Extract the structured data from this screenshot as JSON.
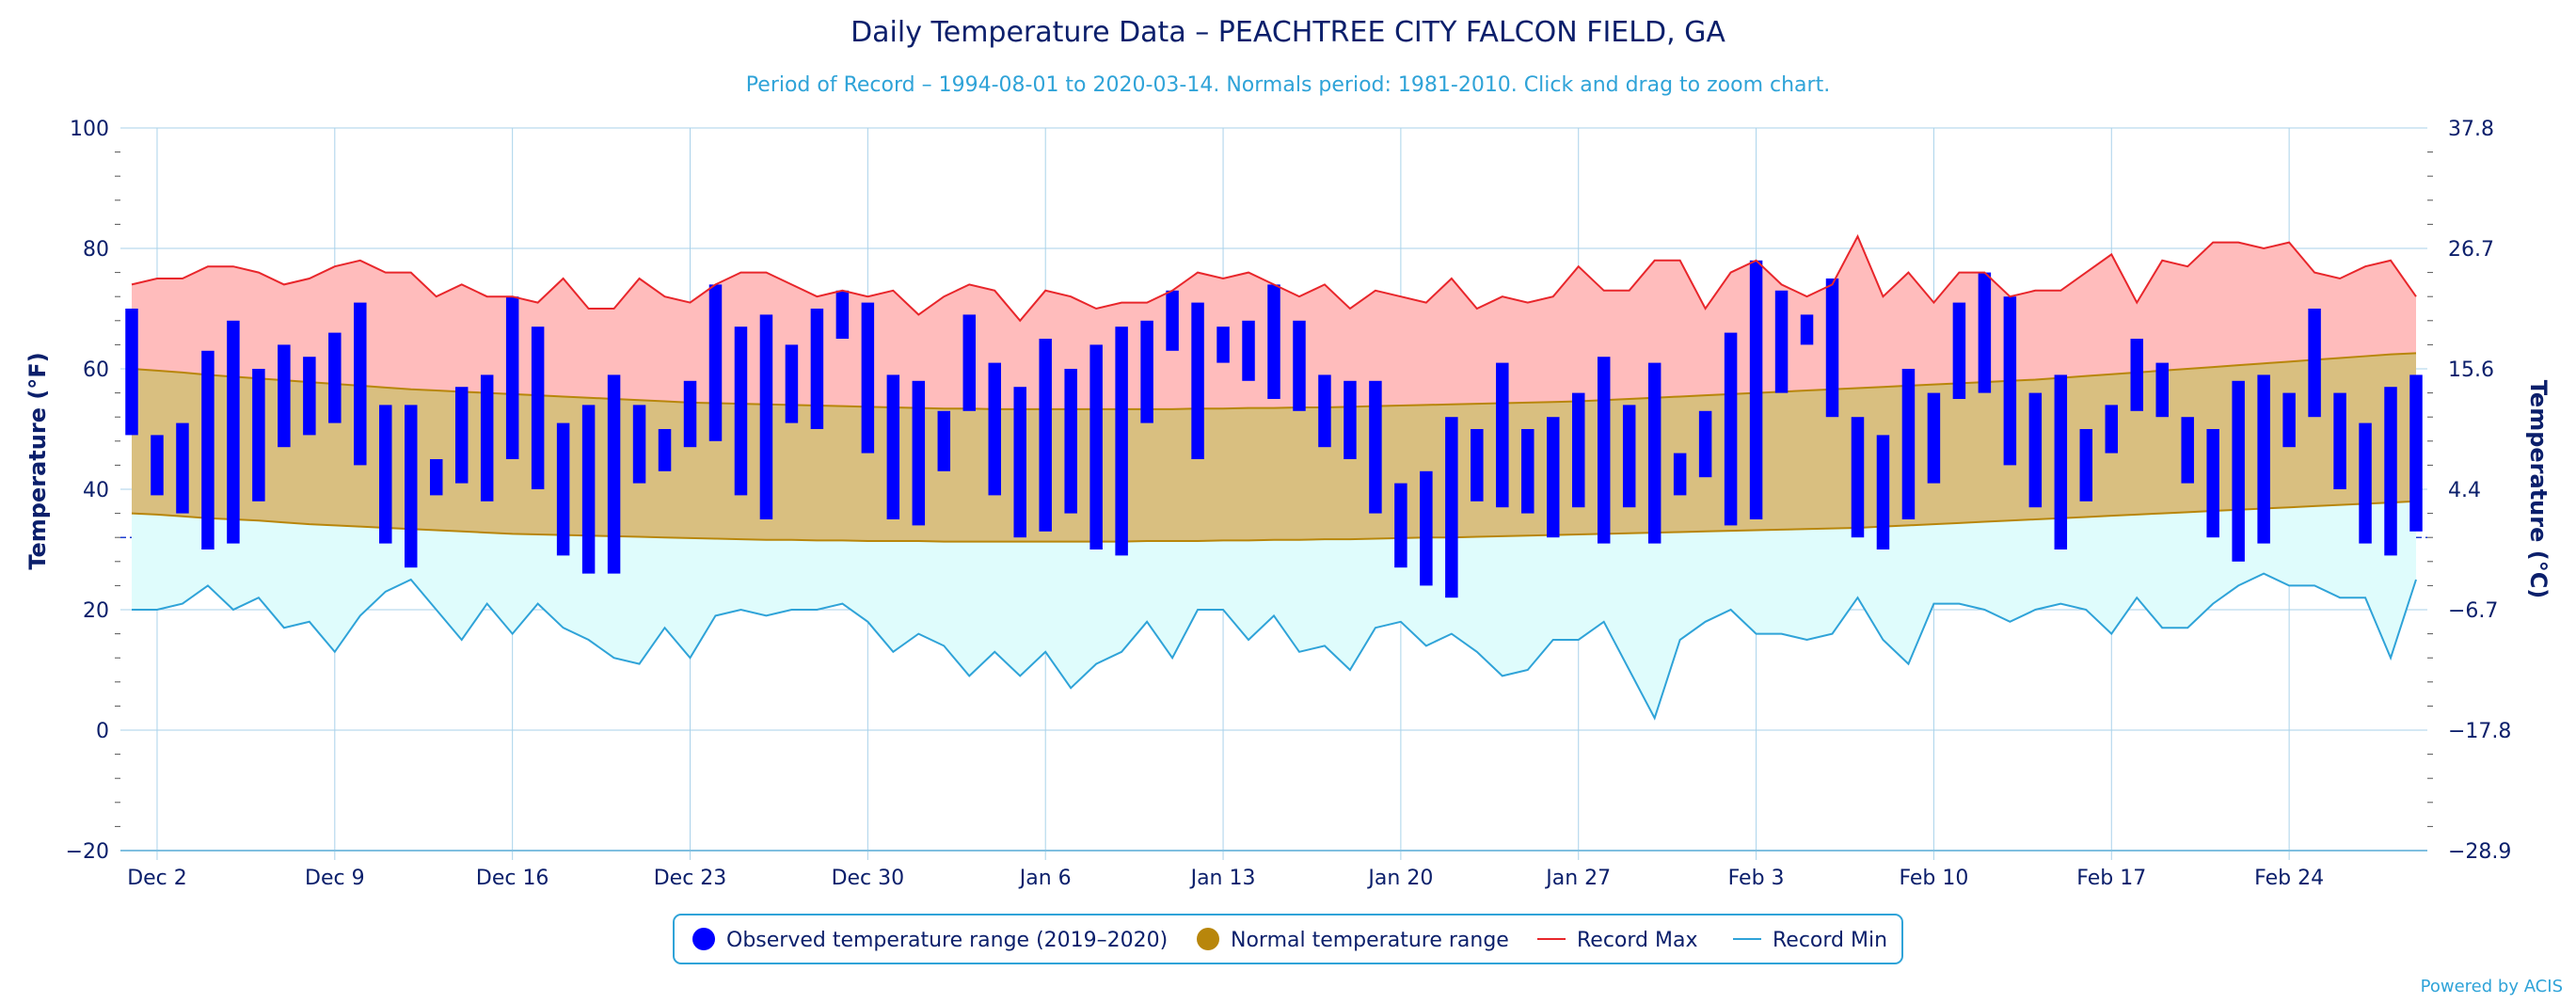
{
  "chart_data": {
    "type": "bar",
    "title": "Daily Temperature Data – PEACHTREE CITY FALCON FIELD, GA",
    "subtitle": "Period of Record – 1994-08-01 to 2020-03-14. Normals period: 1981-2010. Click and drag to zoom chart.",
    "ylabel": "Temperature (°F)",
    "ylabel_right": "Temperature (°C)",
    "ylim": [
      -20,
      100
    ],
    "y_ticks": [
      "100",
      "80",
      "60",
      "40",
      "20",
      "0",
      "−20"
    ],
    "y_ticks_right": [
      "37.8",
      "26.7",
      "15.6",
      "4.4",
      "−6.7",
      "−17.8",
      "−28.9"
    ],
    "x_ticks": [
      {
        "label": "Dec 2",
        "day": 1
      },
      {
        "label": "Dec 9",
        "day": 8
      },
      {
        "label": "Dec 16",
        "day": 15
      },
      {
        "label": "Dec 23",
        "day": 22
      },
      {
        "label": "Dec 30",
        "day": 29
      },
      {
        "label": "Jan 6",
        "day": 36
      },
      {
        "label": "Jan 13",
        "day": 43
      },
      {
        "label": "Jan 20",
        "day": 50
      },
      {
        "label": "Jan 27",
        "day": 57
      },
      {
        "label": "Feb 3",
        "day": 64
      },
      {
        "label": "Feb 10",
        "day": 71
      },
      {
        "label": "Feb 17",
        "day": 78
      },
      {
        "label": "Feb 24",
        "day": 85
      }
    ],
    "x_range_days": [
      0,
      90
    ],
    "freezing_line": 32,
    "observed": {
      "name": "Observed temperature range (2019–2020)",
      "color": "#0000ff",
      "highs": [
        70,
        49,
        51,
        63,
        68,
        60,
        64,
        62,
        66,
        71,
        54,
        54,
        45,
        57,
        59,
        72,
        67,
        51,
        54,
        59,
        54,
        50,
        58,
        74,
        67,
        69,
        64,
        70,
        73,
        71,
        59,
        58,
        53,
        69,
        61,
        57,
        65,
        60,
        64,
        67,
        68,
        73,
        71,
        67,
        68,
        74,
        68,
        59,
        58,
        58,
        41,
        43,
        52,
        50,
        61,
        50,
        52,
        56,
        62,
        54,
        61,
        46,
        53,
        66,
        78,
        73,
        69,
        75,
        52,
        49,
        60,
        56,
        71,
        76,
        72,
        56,
        59,
        50,
        54,
        65,
        61,
        52,
        50,
        58,
        59,
        56,
        70,
        56,
        51,
        57,
        59
      ],
      "lows": [
        49,
        39,
        36,
        30,
        31,
        38,
        47,
        49,
        51,
        44,
        31,
        27,
        39,
        41,
        38,
        45,
        40,
        29,
        26,
        26,
        41,
        43,
        47,
        48,
        39,
        35,
        51,
        50,
        65,
        46,
        35,
        34,
        43,
        53,
        39,
        32,
        33,
        36,
        30,
        29,
        51,
        63,
        45,
        61,
        58,
        55,
        53,
        47,
        45,
        36,
        27,
        24,
        22,
        38,
        37,
        36,
        32,
        37,
        31,
        37,
        31,
        39,
        42,
        34,
        35,
        56,
        64,
        52,
        32,
        30,
        35,
        41,
        55,
        56,
        44,
        37,
        30,
        38,
        46,
        53,
        52,
        41,
        32,
        28,
        31,
        47,
        52,
        40,
        31,
        29,
        33
      ]
    },
    "normal": {
      "name": "Normal temperature range",
      "color": "#b8860b",
      "highs": [
        60,
        59.7,
        59.4,
        59,
        58.7,
        58.4,
        58.1,
        57.8,
        57.5,
        57.2,
        56.9,
        56.6,
        56.4,
        56.2,
        56,
        55.8,
        55.6,
        55.4,
        55.2,
        55,
        54.8,
        54.6,
        54.4,
        54.3,
        54.2,
        54.1,
        54,
        53.9,
        53.8,
        53.7,
        53.6,
        53.5,
        53.4,
        53.4,
        53.3,
        53.3,
        53.3,
        53.3,
        53.3,
        53.3,
        53.3,
        53.3,
        53.4,
        53.4,
        53.5,
        53.5,
        53.6,
        53.6,
        53.7,
        53.8,
        53.9,
        54,
        54.1,
        54.2,
        54.3,
        54.4,
        54.5,
        54.6,
        54.8,
        55,
        55.2,
        55.4,
        55.6,
        55.8,
        56,
        56.2,
        56.4,
        56.6,
        56.8,
        57,
        57.2,
        57.4,
        57.6,
        57.8,
        58,
        58.2,
        58.5,
        58.8,
        59.1,
        59.4,
        59.7,
        60,
        60.3,
        60.6,
        60.9,
        61.2,
        61.5,
        61.8,
        62.1,
        62.4,
        62.6
      ],
      "lows": [
        36,
        35.8,
        35.5,
        35.2,
        35,
        34.8,
        34.5,
        34.2,
        34,
        33.8,
        33.6,
        33.4,
        33.2,
        33,
        32.8,
        32.6,
        32.5,
        32.4,
        32.3,
        32.2,
        32.1,
        32,
        31.9,
        31.8,
        31.7,
        31.6,
        31.6,
        31.5,
        31.5,
        31.4,
        31.4,
        31.4,
        31.3,
        31.3,
        31.3,
        31.3,
        31.3,
        31.3,
        31.3,
        31.3,
        31.4,
        31.4,
        31.4,
        31.5,
        31.5,
        31.6,
        31.6,
        31.7,
        31.7,
        31.8,
        31.9,
        32,
        32,
        32.1,
        32.2,
        32.3,
        32.4,
        32.5,
        32.6,
        32.7,
        32.8,
        32.9,
        33,
        33.1,
        33.2,
        33.3,
        33.4,
        33.5,
        33.6,
        33.8,
        34,
        34.2,
        34.4,
        34.6,
        34.8,
        35,
        35.2,
        35.4,
        35.6,
        35.8,
        36,
        36.2,
        36.4,
        36.6,
        36.8,
        37,
        37.2,
        37.4,
        37.6,
        37.8,
        38
      ]
    },
    "record_max": {
      "name": "Record Max",
      "color": "#e8262b",
      "values": [
        74,
        75,
        75,
        77,
        77,
        76,
        74,
        75,
        77,
        78,
        76,
        76,
        72,
        74,
        72,
        72,
        71,
        75,
        70,
        70,
        75,
        72,
        71,
        74,
        76,
        76,
        74,
        72,
        73,
        72,
        73,
        69,
        72,
        74,
        73,
        68,
        73,
        72,
        70,
        71,
        71,
        73,
        76,
        75,
        76,
        74,
        72,
        74,
        70,
        73,
        72,
        71,
        75,
        70,
        72,
        71,
        72,
        77,
        73,
        73,
        78,
        78,
        70,
        76,
        78,
        74,
        72,
        74,
        82,
        72,
        76,
        71,
        76,
        76,
        72,
        73,
        73,
        76,
        79,
        71,
        78,
        77,
        81,
        81,
        80,
        81,
        76,
        75,
        77,
        78,
        72
      ]
    },
    "record_min": {
      "name": "Record Min",
      "color": "#2fa3d8",
      "values": [
        20,
        20,
        21,
        24,
        20,
        22,
        17,
        18,
        13,
        19,
        23,
        25,
        20,
        15,
        21,
        16,
        21,
        17,
        15,
        12,
        11,
        17,
        12,
        19,
        20,
        19,
        20,
        20,
        21,
        18,
        13,
        16,
        14,
        9,
        13,
        9,
        13,
        7,
        11,
        13,
        18,
        12,
        20,
        20,
        15,
        19,
        13,
        14,
        10,
        17,
        18,
        14,
        16,
        13,
        9,
        10,
        15,
        15,
        18,
        10,
        2,
        15,
        18,
        20,
        16,
        16,
        15,
        16,
        22,
        15,
        11,
        21,
        21,
        20,
        18,
        20,
        21,
        20,
        16,
        22,
        17,
        17,
        21,
        24,
        26,
        24,
        24,
        22,
        22,
        12,
        25
      ]
    },
    "legend_placement": "bottom-center",
    "grid": true
  },
  "credit": "Powered by ACIS"
}
